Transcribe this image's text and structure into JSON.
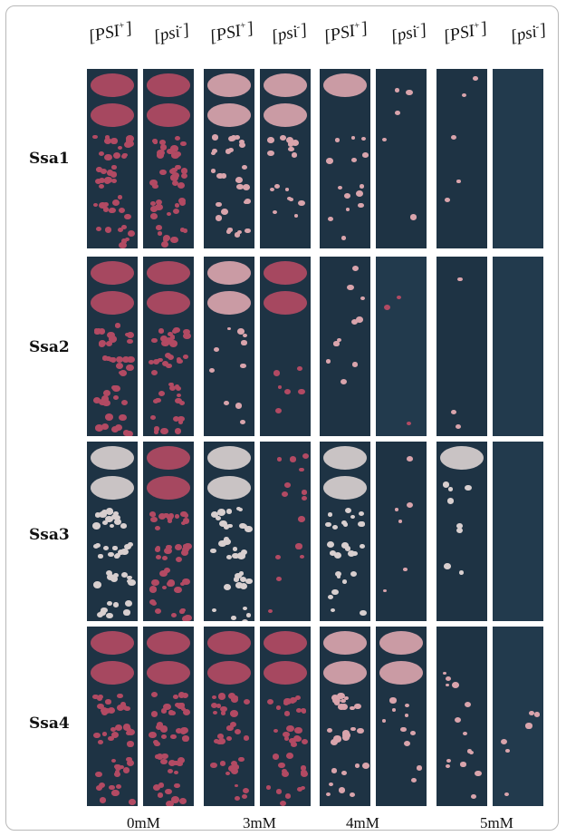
{
  "column_headers": [
    {
      "name": "PSI",
      "sup": "+",
      "bracket": true
    },
    {
      "name": "psi",
      "sup": "-",
      "bracket": true
    },
    {
      "name": "PSI",
      "sup": "+",
      "bracket": true
    },
    {
      "name": "psi",
      "sup": "-",
      "bracket": true
    },
    {
      "name": "PSI",
      "sup": "+",
      "bracket": true
    },
    {
      "name": "psi",
      "sup": "-",
      "bracket": true
    },
    {
      "name": "PSI",
      "sup": "+",
      "bracket": true
    },
    {
      "name": "psi",
      "sup": "-",
      "bracket": true
    }
  ],
  "header_text": {
    "h0": "[PSI",
    "h0s": "+",
    "h1": "[psi",
    "h1s": "-",
    "h2": "[PSI",
    "h2s": "+",
    "h3": "[psi",
    "h3s": "-",
    "h4": "[PSI",
    "h4s": "+",
    "h5": "[psi",
    "h5s": "-",
    "h6": "[PSI",
    "h6s": "+",
    "h7": "[psi",
    "h7s": "-",
    "close": "]"
  },
  "rows": [
    "Ssa1",
    "Ssa2",
    "Ssa3",
    "Ssa4"
  ],
  "concentrations": [
    "0mM",
    "3mM",
    "4mM",
    "5mM"
  ],
  "colors": {
    "plate_background": "#1e3344",
    "colony_red": "#b24a63",
    "colony_pink": "#d9a4ac",
    "colony_white": "#d8cfcf"
  }
}
